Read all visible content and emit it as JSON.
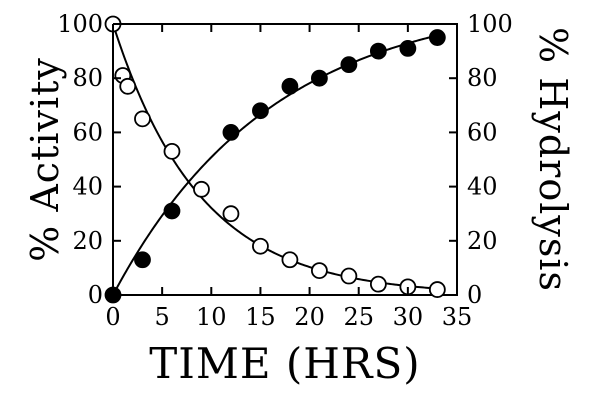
{
  "chart_data": {
    "type": "scatter",
    "xlabel": "TIME (HRS)",
    "ylabel_left": "% Activity",
    "ylabel_right": "% Hydrolysis",
    "xlim": [
      0,
      35
    ],
    "ylim_left": [
      0,
      100
    ],
    "ylim_right": [
      0,
      100
    ],
    "x_ticks": [
      0,
      5,
      10,
      15,
      20,
      25,
      30,
      35
    ],
    "y_ticks_left": [
      0,
      20,
      40,
      60,
      80,
      100
    ],
    "y_ticks_right": [
      0,
      20,
      40,
      60,
      80,
      100
    ],
    "grid": false,
    "series": [
      {
        "marker": "open-circle",
        "axis": "left",
        "fit": "exponential-decay",
        "x": [
          0,
          1,
          1.5,
          3,
          6,
          9,
          12,
          15,
          18,
          21,
          24,
          27,
          30,
          33
        ],
        "y": [
          100,
          81,
          77,
          65,
          53,
          39,
          30,
          18,
          13,
          9,
          7,
          4,
          3,
          2
        ]
      },
      {
        "marker": "filled-circle",
        "axis": "right",
        "fit": "exponential-rise",
        "x": [
          0,
          3,
          6,
          12,
          15,
          18,
          21,
          24,
          27,
          30,
          33
        ],
        "y": [
          0,
          13,
          31,
          60,
          68,
          77,
          80,
          85,
          90,
          91,
          95
        ]
      }
    ]
  }
}
